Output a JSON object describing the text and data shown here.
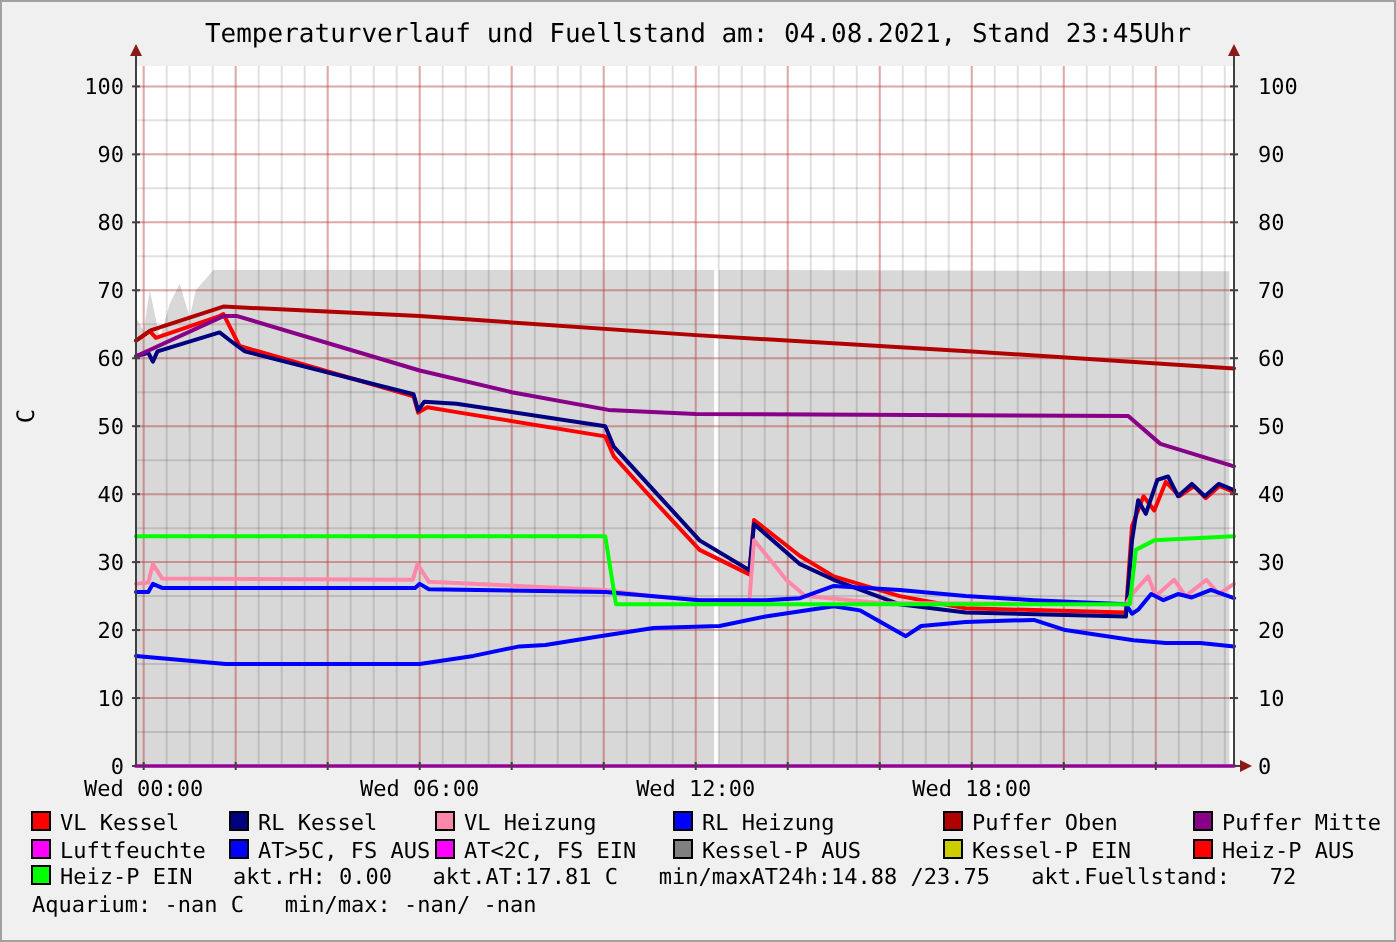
{
  "chart_data": {
    "type": "line",
    "title": "Temperaturverlauf und Fuellstand am: 04.08.2021, Stand 23:45Uhr",
    "ylabel": "C",
    "xlim": [
      "2021-08-03T23:50",
      "2021-08-04T23:42"
    ],
    "xticks": [
      {
        "value": "2021-08-04T00:00",
        "label": "Wed 00:00"
      },
      {
        "value": "2021-08-04T02:00",
        "label": null
      },
      {
        "value": "2021-08-04T04:00",
        "label": null
      },
      {
        "value": "2021-08-04T06:00",
        "label": "Wed 06:00"
      },
      {
        "value": "2021-08-04T08:00",
        "label": null
      },
      {
        "value": "2021-08-04T10:00",
        "label": null
      },
      {
        "value": "2021-08-04T12:00",
        "label": "Wed 12:00"
      },
      {
        "value": "2021-08-04T14:00",
        "label": null
      },
      {
        "value": "2021-08-04T16:00",
        "label": null
      },
      {
        "value": "2021-08-04T18:00",
        "label": "Wed 18:00"
      },
      {
        "value": "2021-08-04T20:00",
        "label": null
      },
      {
        "value": "2021-08-04T22:00",
        "label": null
      }
    ],
    "ylim": [
      0,
      103
    ],
    "yticks": [
      0,
      10,
      20,
      30,
      40,
      50,
      60,
      70,
      80,
      90,
      100
    ],
    "y2lim": [
      0,
      103
    ],
    "y2ticks": [
      0,
      10,
      20,
      30,
      40,
      50,
      60,
      70,
      80,
      90,
      100
    ],
    "grid": true,
    "legend": "bottom",
    "series": [
      {
        "type": "area",
        "color": "#d8d8d8",
        "x": [
          "2021-08-03T23:50",
          "2021-08-04T00:00",
          "2021-08-04T00:08",
          "2021-08-04T00:21",
          "2021-08-04T00:34",
          "2021-08-04T00:47",
          "2021-08-04T01:00",
          "2021-08-04T01:08",
          "2021-08-04T01:31",
          "2021-08-04T12:24",
          "2021-08-04T12:27",
          "2021-08-04T12:30",
          "2021-08-04T23:36"
        ],
        "values": [
          66,
          64,
          70,
          63,
          68,
          71,
          66,
          70,
          73,
          73,
          null,
          73,
          72.8
        ]
      },
      {
        "name": "VL Kessel",
        "color": "#ff0000",
        "x": [
          "2021-08-03T23:50",
          "2021-08-04T00:08",
          "2021-08-04T00:16",
          "2021-08-04T01:39",
          "2021-08-04T01:44",
          "2021-08-04T02:05",
          "2021-08-04T05:52",
          "2021-08-04T05:58",
          "2021-08-04T06:10",
          "2021-08-04T06:52",
          "2021-08-04T10:02",
          "2021-08-04T10:13",
          "2021-08-04T11:05",
          "2021-08-04T12:05",
          "2021-08-04T13:10",
          "2021-08-04T13:16",
          "2021-08-04T14:16",
          "2021-08-04T15:00",
          "2021-08-04T16:26",
          "2021-08-04T17:52",
          "2021-08-04T21:21",
          "2021-08-04T21:29",
          "2021-08-04T21:44",
          "2021-08-04T21:58",
          "2021-08-04T22:13",
          "2021-08-04T22:31",
          "2021-08-04T22:50",
          "2021-08-04T23:05",
          "2021-08-04T23:23",
          "2021-08-04T23:42"
        ],
        "values": [
          62.6,
          64.0,
          63.0,
          66.2,
          66.5,
          61.8,
          54.4,
          52.0,
          52.8,
          52.0,
          48.5,
          45.6,
          39.1,
          31.8,
          28.2,
          36.2,
          30.9,
          27.9,
          25.0,
          23.2,
          22.6,
          35.3,
          39.7,
          37.6,
          41.8,
          39.7,
          41.2,
          39.4,
          41.2,
          40.3
        ]
      },
      {
        "name": "RL Kessel",
        "color": "#000080",
        "x": [
          "2021-08-03T23:50",
          "2021-08-04T00:06",
          "2021-08-04T00:12",
          "2021-08-04T00:18",
          "2021-08-04T01:39",
          "2021-08-04T01:54",
          "2021-08-04T02:12",
          "2021-08-04T05:52",
          "2021-08-04T05:58",
          "2021-08-04T06:06",
          "2021-08-04T06:48",
          "2021-08-04T10:02",
          "2021-08-04T10:13",
          "2021-08-04T11:05",
          "2021-08-04T12:05",
          "2021-08-04T13:10",
          "2021-08-04T13:16",
          "2021-08-04T14:16",
          "2021-08-04T15:00",
          "2021-08-04T16:26",
          "2021-08-04T17:52",
          "2021-08-04T21:21",
          "2021-08-04T21:29",
          "2021-08-04T21:37",
          "2021-08-04T21:47",
          "2021-08-04T22:02",
          "2021-08-04T22:16",
          "2021-08-04T22:29",
          "2021-08-04T22:47",
          "2021-08-04T23:04",
          "2021-08-04T23:22",
          "2021-08-04T23:42"
        ],
        "values": [
          60.3,
          60.8,
          59.5,
          61.0,
          63.8,
          62.5,
          61.0,
          54.7,
          52.3,
          53.6,
          53.3,
          50.0,
          47.0,
          40.6,
          33.2,
          28.8,
          35.6,
          29.7,
          27.4,
          23.8,
          22.6,
          22.0,
          33.2,
          39.1,
          37.1,
          42.1,
          42.6,
          39.7,
          41.5,
          39.7,
          41.5,
          40.6
        ]
      },
      {
        "name": "VL Heizung",
        "color": "#ff88aa",
        "x": [
          "2021-08-03T23:50",
          "2021-08-04T00:06",
          "2021-08-04T00:12",
          "2021-08-04T00:24",
          "2021-08-04T05:51",
          "2021-08-04T05:57",
          "2021-08-04T06:12",
          "2021-08-04T10:02",
          "2021-08-04T11:00",
          "2021-08-04T12:05",
          "2021-08-04T13:10",
          "2021-08-04T13:16",
          "2021-08-04T13:31",
          "2021-08-04T13:58",
          "2021-08-04T14:23",
          "2021-08-04T16:00",
          "2021-08-04T21:21",
          "2021-08-04T21:29",
          "2021-08-04T21:50",
          "2021-08-04T22:00",
          "2021-08-04T22:24",
          "2021-08-04T22:39",
          "2021-08-04T23:06",
          "2021-08-04T23:22",
          "2021-08-04T23:42"
        ],
        "values": [
          26.8,
          27.0,
          29.7,
          27.6,
          27.4,
          29.7,
          27.1,
          25.9,
          25.0,
          24.4,
          24.4,
          33.2,
          31.2,
          27.4,
          25.0,
          24.0,
          23.8,
          25.3,
          27.9,
          25.0,
          27.4,
          25.0,
          27.4,
          25.3,
          26.8
        ]
      },
      {
        "name": "RL Heizung",
        "color": "#0000ff",
        "x": [
          "2021-08-03T23:50",
          "2021-08-04T00:06",
          "2021-08-04T00:12",
          "2021-08-04T00:24",
          "2021-08-04T05:54",
          "2021-08-04T06:00",
          "2021-08-04T06:12",
          "2021-08-04T10:02",
          "2021-08-04T12:05",
          "2021-08-04T13:31",
          "2021-08-04T14:16",
          "2021-08-04T15:00",
          "2021-08-04T16:26",
          "2021-08-04T17:52",
          "2021-08-04T19:21",
          "2021-08-04T21:21",
          "2021-08-04T21:29",
          "2021-08-04T21:37",
          "2021-08-04T21:54",
          "2021-08-04T22:10",
          "2021-08-04T22:29",
          "2021-08-04T22:47",
          "2021-08-04T23:12",
          "2021-08-04T23:42"
        ],
        "values": [
          25.6,
          25.6,
          26.8,
          26.2,
          26.2,
          26.8,
          26.0,
          25.6,
          24.4,
          24.4,
          24.7,
          26.5,
          25.9,
          25.0,
          24.4,
          23.8,
          22.4,
          23.0,
          25.3,
          24.4,
          25.3,
          24.8,
          25.9,
          24.7
        ]
      },
      {
        "name": "Puffer Oben",
        "color": "#b00000",
        "x": [
          "2021-08-03T23:50",
          "2021-08-04T00:09",
          "2021-08-04T01:44",
          "2021-08-04T06:00",
          "2021-08-04T12:00",
          "2021-08-04T18:00",
          "2021-08-04T23:42"
        ],
        "values": [
          62.6,
          64.1,
          67.6,
          66.2,
          63.4,
          61.0,
          58.5
        ]
      },
      {
        "name": "Puffer Mitte",
        "color": "#880088",
        "x": [
          "2021-08-03T23:50",
          "2021-08-04T01:44",
          "2021-08-04T02:02",
          "2021-08-04T06:00",
          "2021-08-04T08:00",
          "2021-08-04T10:06",
          "2021-08-04T12:00",
          "2021-08-04T21:24",
          "2021-08-04T22:06",
          "2021-08-04T23:42"
        ],
        "values": [
          60.3,
          66.2,
          66.2,
          58.2,
          55.0,
          52.4,
          51.8,
          51.5,
          47.4,
          44.1
        ]
      },
      {
        "name": "Luftfeuchte",
        "color": "#ff00ff",
        "x": [
          "2021-08-03T23:50",
          "2021-08-04T23:42"
        ],
        "values": [
          0,
          0
        ]
      },
      {
        "name": "AT>5C, FS AUS",
        "color": "#0000ff",
        "x": [
          "2021-08-03T23:50",
          "2021-08-04T01:47",
          "2021-08-04T06:00",
          "2021-08-04T07:10",
          "2021-08-04T08:10",
          "2021-08-04T08:44",
          "2021-08-04T09:55",
          "2021-08-04T11:05",
          "2021-08-04T12:31",
          "2021-08-04T13:31",
          "2021-08-04T15:00",
          "2021-08-04T15:34",
          "2021-08-04T16:34",
          "2021-08-04T16:54",
          "2021-08-04T17:52",
          "2021-08-04T19:21",
          "2021-08-04T20:02",
          "2021-08-04T21:31",
          "2021-08-04T22:13",
          "2021-08-04T22:58",
          "2021-08-04T23:42"
        ],
        "values": [
          16.2,
          15.0,
          15.0,
          16.2,
          17.6,
          17.8,
          19.1,
          20.3,
          20.6,
          22.0,
          23.5,
          22.9,
          19.1,
          20.6,
          21.2,
          21.5,
          20.0,
          18.5,
          18.1,
          18.1,
          17.6
        ]
      },
      {
        "name": "AT<2C, FS EIN",
        "color": "#ff00ff"
      },
      {
        "name": "Kessel-P AUS",
        "color": "#808080"
      },
      {
        "name": "Kessel-P EIN",
        "color": "#cccc00"
      },
      {
        "name": "Heiz-P AUS",
        "color": "#ff0000"
      },
      {
        "name": "Heiz-P EIN",
        "color": "#00ff00",
        "x": [
          "2021-08-03T23:50",
          "2021-08-04T10:02",
          "2021-08-04T10:16",
          "2021-08-04T21:26",
          "2021-08-04T21:34",
          "2021-08-04T21:58",
          "2021-08-04T23:42"
        ],
        "values": [
          33.8,
          33.8,
          23.8,
          23.8,
          31.8,
          33.2,
          33.8
        ]
      }
    ],
    "annotations": [
      "akt.rH: 0.00",
      "akt.AT:17.81 C",
      "min/maxAT24h:14.88 /23.75",
      "akt.Fuellstand:   72",
      "Aquarium: -nan C",
      "min/max: -nan/ -nan"
    ]
  }
}
